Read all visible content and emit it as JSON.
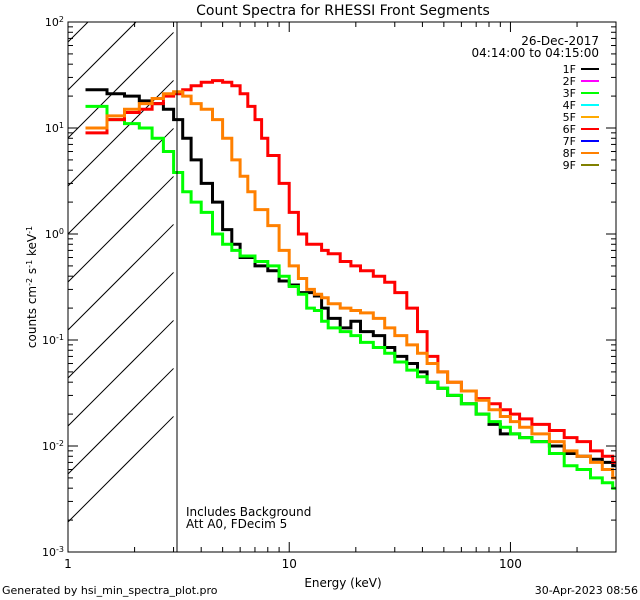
{
  "chart_data": {
    "type": "line",
    "title": "Count Spectra for RHESSI Front Segments",
    "xlabel": "Energy (keV)",
    "ylabel": "counts cm⁻² s⁻¹ keV⁻¹",
    "xscale": "log",
    "yscale": "log",
    "xlim": [
      1,
      300
    ],
    "ylim": [
      0.001,
      100
    ],
    "x_ticks": [
      {
        "value": 1,
        "label": "1"
      },
      {
        "value": 10,
        "label": "10"
      },
      {
        "value": 100,
        "label": "100"
      }
    ],
    "y_ticks": [
      {
        "value": 0.001,
        "base": "10",
        "exp": "-3"
      },
      {
        "value": 0.01,
        "base": "10",
        "exp": "-2"
      },
      {
        "value": 0.1,
        "base": "10",
        "exp": "-1"
      },
      {
        "value": 1,
        "base": "10",
        "exp": "0"
      },
      {
        "value": 10,
        "base": "10",
        "exp": "1"
      },
      {
        "value": 100,
        "base": "10",
        "exp": "2"
      }
    ],
    "date": "26-Dec-2017",
    "time_range": "04:14:00 to 04:15:00",
    "shaded_region": {
      "x_min": 1,
      "x_max": 3,
      "pattern": "hatched"
    },
    "annotation_lines": [
      "Includes Background",
      "Att A0, FDecim 5"
    ],
    "legend_position": "top-right",
    "series": [
      {
        "name": "1F",
        "color": "#000000",
        "plotted": true,
        "points": [
          [
            1.2,
            23
          ],
          [
            1.5,
            21
          ],
          [
            1.8,
            20
          ],
          [
            2.1,
            18
          ],
          [
            2.4,
            17
          ],
          [
            2.7,
            15
          ],
          [
            3.0,
            12
          ],
          [
            3.3,
            8
          ],
          [
            3.6,
            5
          ],
          [
            4.0,
            3
          ],
          [
            4.5,
            2
          ],
          [
            5.0,
            1.1
          ],
          [
            5.5,
            0.8
          ],
          [
            6.0,
            0.6
          ],
          [
            7,
            0.5
          ],
          [
            8,
            0.45
          ],
          [
            9,
            0.36
          ],
          [
            10,
            0.33
          ],
          [
            11,
            0.28
          ],
          [
            12,
            0.28
          ],
          [
            13,
            0.26
          ],
          [
            14,
            0.2
          ],
          [
            15,
            0.16
          ],
          [
            17,
            0.13
          ],
          [
            19,
            0.15
          ],
          [
            21,
            0.12
          ],
          [
            24,
            0.11
          ],
          [
            27,
            0.085
          ],
          [
            30,
            0.07
          ],
          [
            34,
            0.06
          ],
          [
            38,
            0.05
          ],
          [
            42,
            0.04
          ],
          [
            47,
            0.035
          ],
          [
            52,
            0.03
          ],
          [
            60,
            0.025
          ],
          [
            70,
            0.02
          ],
          [
            80,
            0.016
          ],
          [
            90,
            0.013
          ],
          [
            100,
            0.013
          ],
          [
            110,
            0.012
          ],
          [
            125,
            0.011
          ],
          [
            150,
            0.01
          ],
          [
            175,
            0.0085
          ],
          [
            200,
            0.008
          ],
          [
            230,
            0.0075
          ],
          [
            260,
            0.007
          ],
          [
            290,
            0.0065
          ]
        ]
      },
      {
        "name": "2F",
        "color": "#ff00ff",
        "plotted": false,
        "points": []
      },
      {
        "name": "3F",
        "color": "#00ff00",
        "plotted": true,
        "points": [
          [
            1.2,
            16
          ],
          [
            1.5,
            12
          ],
          [
            1.8,
            11
          ],
          [
            2.1,
            10
          ],
          [
            2.4,
            8
          ],
          [
            2.7,
            6
          ],
          [
            3.0,
            3.8
          ],
          [
            3.3,
            2.5
          ],
          [
            3.6,
            2.0
          ],
          [
            4.0,
            1.6
          ],
          [
            4.5,
            1.0
          ],
          [
            5.0,
            0.8
          ],
          [
            5.5,
            0.7
          ],
          [
            6.0,
            0.62
          ],
          [
            7,
            0.55
          ],
          [
            8,
            0.5
          ],
          [
            9,
            0.4
          ],
          [
            10,
            0.32
          ],
          [
            11,
            0.27
          ],
          [
            12,
            0.2
          ],
          [
            13,
            0.19
          ],
          [
            14,
            0.15
          ],
          [
            15,
            0.13
          ],
          [
            17,
            0.12
          ],
          [
            19,
            0.11
          ],
          [
            21,
            0.095
          ],
          [
            24,
            0.085
          ],
          [
            27,
            0.075
          ],
          [
            30,
            0.062
          ],
          [
            34,
            0.052
          ],
          [
            38,
            0.045
          ],
          [
            42,
            0.04
          ],
          [
            47,
            0.035
          ],
          [
            52,
            0.03
          ],
          [
            60,
            0.025
          ],
          [
            70,
            0.02
          ],
          [
            80,
            0.017
          ],
          [
            90,
            0.015
          ],
          [
            100,
            0.013
          ],
          [
            110,
            0.012
          ],
          [
            125,
            0.011
          ],
          [
            150,
            0.0085
          ],
          [
            175,
            0.0065
          ],
          [
            200,
            0.006
          ],
          [
            230,
            0.005
          ],
          [
            260,
            0.0045
          ],
          [
            290,
            0.004
          ]
        ]
      },
      {
        "name": "4F",
        "color": "#00ffff",
        "plotted": false,
        "points": []
      },
      {
        "name": "5F",
        "color": "#ffaa00",
        "plotted": false,
        "points": []
      },
      {
        "name": "6F",
        "color": "#ff0000",
        "plotted": true,
        "points": [
          [
            1.2,
            9
          ],
          [
            1.5,
            12
          ],
          [
            1.8,
            14
          ],
          [
            2.1,
            15
          ],
          [
            2.4,
            17
          ],
          [
            2.7,
            20
          ],
          [
            3.0,
            21
          ],
          [
            3.3,
            23
          ],
          [
            3.6,
            25
          ],
          [
            4.0,
            27
          ],
          [
            4.5,
            28
          ],
          [
            5.0,
            27
          ],
          [
            5.5,
            25
          ],
          [
            6.0,
            21
          ],
          [
            6.5,
            16
          ],
          [
            7,
            12
          ],
          [
            7.5,
            8
          ],
          [
            8,
            5.5
          ],
          [
            9,
            3
          ],
          [
            10,
            1.6
          ],
          [
            11,
            1
          ],
          [
            12,
            0.8
          ],
          [
            13,
            0.8
          ],
          [
            14,
            0.7
          ],
          [
            15,
            0.65
          ],
          [
            17,
            0.55
          ],
          [
            19,
            0.5
          ],
          [
            21,
            0.45
          ],
          [
            24,
            0.4
          ],
          [
            27,
            0.35
          ],
          [
            30,
            0.28
          ],
          [
            34,
            0.2
          ],
          [
            38,
            0.12
          ],
          [
            42,
            0.07
          ],
          [
            47,
            0.05
          ],
          [
            52,
            0.04
          ],
          [
            60,
            0.033
          ],
          [
            70,
            0.028
          ],
          [
            80,
            0.025
          ],
          [
            90,
            0.022
          ],
          [
            100,
            0.02
          ],
          [
            110,
            0.018
          ],
          [
            125,
            0.016
          ],
          [
            150,
            0.014
          ],
          [
            175,
            0.012
          ],
          [
            200,
            0.011
          ],
          [
            230,
            0.009
          ],
          [
            260,
            0.008
          ],
          [
            290,
            0.007
          ]
        ]
      },
      {
        "name": "7F",
        "color": "#0000ff",
        "plotted": false,
        "points": []
      },
      {
        "name": "8F",
        "color": "#ff8000",
        "plotted": true,
        "points": [
          [
            1.2,
            10
          ],
          [
            1.5,
            13
          ],
          [
            1.8,
            15
          ],
          [
            2.1,
            17
          ],
          [
            2.4,
            19
          ],
          [
            2.7,
            21
          ],
          [
            3.0,
            22
          ],
          [
            3.3,
            20
          ],
          [
            3.6,
            17
          ],
          [
            4.0,
            15
          ],
          [
            4.5,
            12
          ],
          [
            5.0,
            8
          ],
          [
            5.5,
            5
          ],
          [
            6.0,
            3.5
          ],
          [
            6.5,
            2.5
          ],
          [
            7,
            1.7
          ],
          [
            8,
            1.2
          ],
          [
            9,
            0.7
          ],
          [
            10,
            0.5
          ],
          [
            11,
            0.38
          ],
          [
            12,
            0.3
          ],
          [
            13,
            0.27
          ],
          [
            14,
            0.25
          ],
          [
            15,
            0.22
          ],
          [
            17,
            0.2
          ],
          [
            19,
            0.19
          ],
          [
            21,
            0.18
          ],
          [
            24,
            0.16
          ],
          [
            27,
            0.13
          ],
          [
            30,
            0.11
          ],
          [
            34,
            0.09
          ],
          [
            38,
            0.075
          ],
          [
            42,
            0.06
          ],
          [
            47,
            0.05
          ],
          [
            52,
            0.04
          ],
          [
            60,
            0.033
          ],
          [
            70,
            0.027
          ],
          [
            80,
            0.022
          ],
          [
            90,
            0.019
          ],
          [
            100,
            0.017
          ],
          [
            110,
            0.015
          ],
          [
            125,
            0.013
          ],
          [
            150,
            0.011
          ],
          [
            175,
            0.009
          ],
          [
            200,
            0.008
          ],
          [
            230,
            0.007
          ],
          [
            260,
            0.006
          ],
          [
            290,
            0.005
          ]
        ]
      },
      {
        "name": "9F",
        "color": "#808000",
        "plotted": false,
        "points": []
      }
    ]
  },
  "footer": {
    "generated_by": "Generated by hsi_min_spectra_plot.pro",
    "timestamp": "30-Apr-2023 08:56"
  }
}
